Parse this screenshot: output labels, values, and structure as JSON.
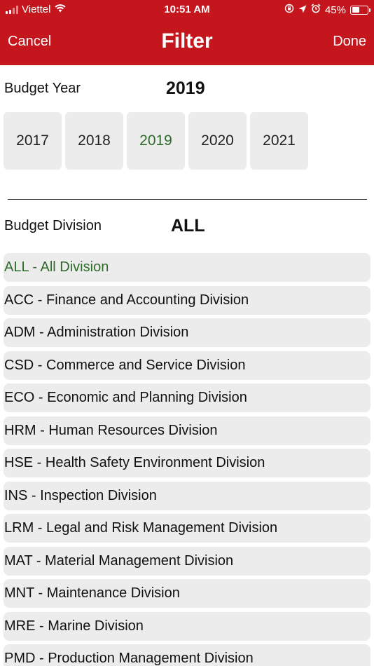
{
  "status_bar": {
    "carrier": "Viettel",
    "time": "10:51 AM",
    "battery": "45%",
    "battery_level": 0.45
  },
  "nav": {
    "cancel_label": "Cancel",
    "title": "Filter",
    "done_label": "Done"
  },
  "budget_year": {
    "label": "Budget Year",
    "value": "2019",
    "options": [
      "2017",
      "2018",
      "2019",
      "2020",
      "2021"
    ],
    "selected": "2019"
  },
  "budget_division": {
    "label": "Budget Division",
    "value": "ALL",
    "selected": "ALL - All Division",
    "items": [
      "ALL - All Division",
      "ACC - Finance and Accounting Division",
      "ADM - Administration Division",
      "CSD - Commerce and Service Division",
      "ECO - Economic and Planning Division",
      "HRM - Human Resources Division",
      "HSE - Health Safety Environment Division",
      "INS - Inspection Division",
      "LRM - Legal and Risk Management Division",
      "MAT - Material Management Division",
      "MNT - Maintenance Division",
      "MRE - Marine Division",
      "PMD - Production Management Division"
    ]
  },
  "colors": {
    "header": "#c4161c",
    "selected_text": "#2e6b2b",
    "item_background": "#ececec"
  },
  "icons": [
    "signal-icon",
    "wifi-icon",
    "screen-rotation-lock-icon",
    "location-arrow-icon",
    "alarm-icon",
    "battery-icon"
  ]
}
